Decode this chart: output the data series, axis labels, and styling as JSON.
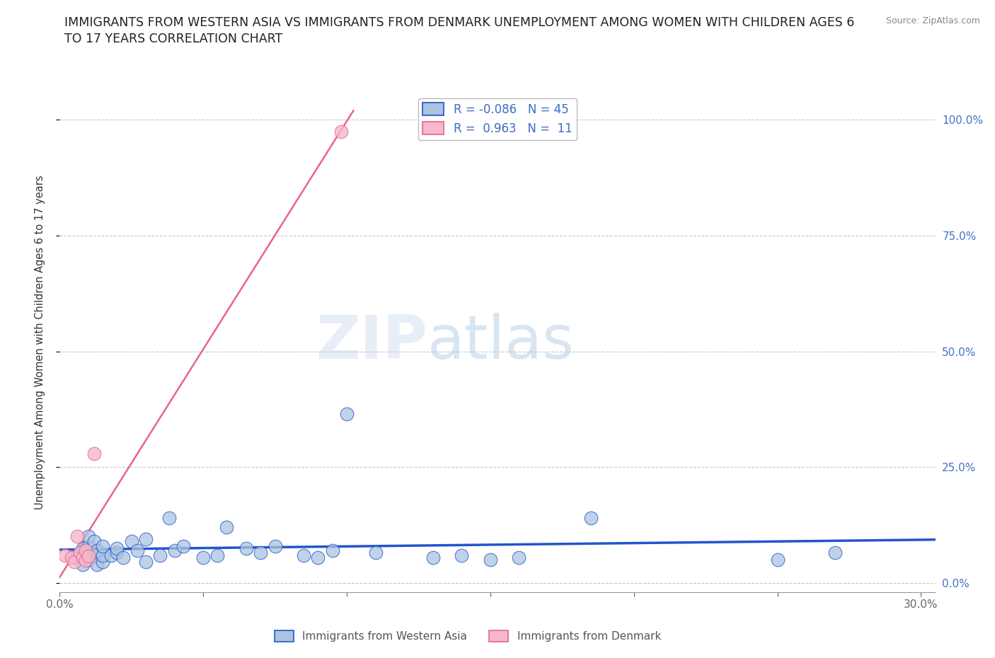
{
  "title_line1": "IMMIGRANTS FROM WESTERN ASIA VS IMMIGRANTS FROM DENMARK UNEMPLOYMENT AMONG WOMEN WITH CHILDREN AGES 6",
  "title_line2": "TO 17 YEARS CORRELATION CHART",
  "source": "Source: ZipAtlas.com",
  "ylabel": "Unemployment Among Women with Children Ages 6 to 17 years",
  "xlim": [
    0.0,
    0.305
  ],
  "ylim": [
    -0.02,
    1.06
  ],
  "xticks": [
    0.0,
    0.05,
    0.1,
    0.15,
    0.2,
    0.25,
    0.3
  ],
  "xtick_labels": [
    "0.0%",
    "",
    "",
    "",
    "",
    "",
    "30.0%"
  ],
  "ytick_positions": [
    0.0,
    0.25,
    0.5,
    0.75,
    1.0
  ],
  "ytick_labels": [
    "0.0%",
    "25.0%",
    "50.0%",
    "75.0%",
    "100.0%"
  ],
  "legend_R_blue": "-0.086",
  "legend_N_blue": "45",
  "legend_R_pink": "0.963",
  "legend_N_pink": "11",
  "legend_label_blue": "Immigrants from Western Asia",
  "legend_label_pink": "Immigrants from Denmark",
  "blue_scatter_x": [
    0.005,
    0.007,
    0.008,
    0.008,
    0.009,
    0.01,
    0.01,
    0.01,
    0.012,
    0.012,
    0.013,
    0.013,
    0.015,
    0.015,
    0.015,
    0.018,
    0.02,
    0.02,
    0.022,
    0.025,
    0.027,
    0.03,
    0.03,
    0.035,
    0.038,
    0.04,
    0.043,
    0.05,
    0.055,
    0.058,
    0.065,
    0.07,
    0.075,
    0.085,
    0.09,
    0.095,
    0.1,
    0.11,
    0.13,
    0.14,
    0.15,
    0.16,
    0.185,
    0.25,
    0.27
  ],
  "blue_scatter_y": [
    0.055,
    0.065,
    0.04,
    0.075,
    0.06,
    0.05,
    0.08,
    0.1,
    0.06,
    0.09,
    0.04,
    0.07,
    0.045,
    0.06,
    0.08,
    0.06,
    0.065,
    0.075,
    0.055,
    0.09,
    0.07,
    0.045,
    0.095,
    0.06,
    0.14,
    0.07,
    0.08,
    0.055,
    0.06,
    0.12,
    0.075,
    0.065,
    0.08,
    0.06,
    0.055,
    0.07,
    0.365,
    0.065,
    0.055,
    0.06,
    0.05,
    0.055,
    0.14,
    0.05,
    0.065
  ],
  "pink_scatter_x": [
    0.002,
    0.004,
    0.005,
    0.006,
    0.007,
    0.008,
    0.009,
    0.009,
    0.01,
    0.012,
    0.098
  ],
  "pink_scatter_y": [
    0.06,
    0.055,
    0.045,
    0.1,
    0.065,
    0.055,
    0.048,
    0.07,
    0.058,
    0.28,
    0.975
  ],
  "blue_color": "#aac4e0",
  "pink_color": "#f5b8cc",
  "blue_line_color": "#2255cc",
  "pink_line_color": "#e8648a",
  "watermark_zip": "ZIP",
  "watermark_atlas": "atlas",
  "background_color": "#ffffff",
  "grid_color": "#c8c8c8"
}
